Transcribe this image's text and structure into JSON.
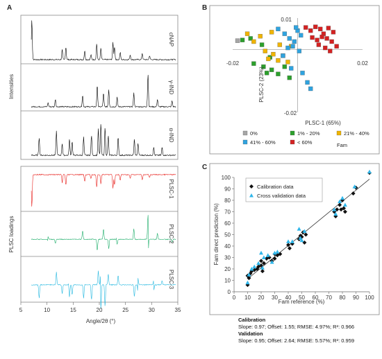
{
  "panels": {
    "a": "A",
    "b": "B",
    "c": "C"
  },
  "panel_a": {
    "xlabel": "Angle/2θ (°)",
    "xticks": [
      5,
      10,
      15,
      20,
      25,
      30,
      35
    ],
    "xlim": [
      5,
      35
    ],
    "ylabel_top": "Intensities",
    "ylabel_bottom": "PLSC loadings",
    "traces": [
      {
        "name": "cNAP",
        "color": "#000000"
      },
      {
        "name": "γ-IND",
        "color": "#000000"
      },
      {
        "name": "α-IND",
        "color": "#000000"
      },
      {
        "name": "PLSC-1",
        "color": "#e8231f"
      },
      {
        "name": "PLSC-2",
        "color": "#1fae6b"
      },
      {
        "name": "PLSC-3",
        "color": "#25b8e0"
      }
    ]
  },
  "chart_data": [
    {
      "type": "scatter",
      "panel": "B",
      "xlabel": "PLSC-1 (65%)",
      "ylabel": "PLSC-2 (23%)",
      "xlim": [
        -0.02,
        0.02
      ],
      "ylim": [
        -0.02,
        0.01
      ],
      "xtick_labels": [
        "-0.02",
        "0.02"
      ],
      "ytick_labels": [
        "0.01",
        "-0.02"
      ],
      "grid": false,
      "legend_position": "bottom",
      "series": [
        {
          "name": "0%",
          "color": "#a6a6a6",
          "x": [
            -0.0185
          ],
          "y": [
            0.0028
          ]
        },
        {
          "name": "1% - 20%",
          "color": "#2ca02c",
          "x": [
            -0.017,
            -0.0145,
            -0.0135,
            -0.0105,
            -0.0095,
            -0.008,
            -0.006,
            -0.004,
            -0.0085,
            -0.0025,
            -0.011
          ],
          "y": [
            0.003,
            0.0035,
            -0.0045,
            -0.0055,
            -0.0075,
            -0.0065,
            -0.0078,
            -0.0055,
            -0.0025,
            -0.009,
            0.0015
          ]
        },
        {
          "name": "21% - 40%",
          "color": "#f0b400",
          "x": [
            -0.0155,
            -0.0135,
            -0.0115,
            -0.01,
            -0.009,
            -0.0075,
            -0.006,
            -0.0045,
            -0.003,
            -0.0055,
            -0.008,
            -0.002
          ],
          "y": [
            0.005,
            0.0025,
            0.0042,
            -0.0005,
            -0.003,
            -0.0015,
            -0.0035,
            -0.002,
            -0.004,
            0.0015,
            0.0055,
            0.001
          ]
        },
        {
          "name": "41% - 60%",
          "color": "#2fa3df",
          "x": [
            -0.006,
            -0.004,
            -0.0025,
            -0.001,
            0.0,
            0.001,
            -0.0015,
            0.0005,
            -0.0045,
            -0.002,
            0.0015,
            0.003,
            0.004,
            -0.0005,
            -0.003
          ],
          "y": [
            0.0065,
            0.005,
            0.0035,
            0.0025,
            0.006,
            0.0045,
            0.001,
            -0.0005,
            -0.002,
            -0.006,
            -0.0075,
            -0.0105,
            -0.0125,
            0.007,
            0.0005
          ]
        },
        {
          "name": "< 60%",
          "color": "#d42222",
          "x": [
            0.0025,
            0.004,
            0.0055,
            0.007,
            0.008,
            0.0095,
            0.011,
            0.0045,
            0.006,
            0.0075,
            0.009,
            0.0105,
            0.0065,
            0.0085,
            0.01,
            0.012
          ],
          "y": [
            0.007,
            0.006,
            0.0072,
            0.0065,
            0.005,
            0.0068,
            0.0055,
            0.0038,
            0.003,
            0.004,
            0.0035,
            0.0025,
            0.0015,
            0.0005,
            -0.0005,
            0.001
          ]
        }
      ],
      "legend_extra": "Fam"
    },
    {
      "type": "scatter",
      "panel": "C",
      "xlabel": "Fam reference (%)",
      "ylabel": "Fam direct prediction (%)",
      "xlim": [
        0,
        100
      ],
      "ylim": [
        0,
        100
      ],
      "xticks": [
        0,
        10,
        20,
        30,
        40,
        50,
        60,
        70,
        80,
        90,
        100
      ],
      "yticks": [
        0,
        10,
        20,
        30,
        40,
        50,
        60,
        70,
        80,
        90,
        100
      ],
      "grid": false,
      "legend_position": "top-left",
      "fit_line": {
        "slope": 0.97,
        "offset": 1.55,
        "x_range": [
          10,
          100
        ]
      },
      "series": [
        {
          "name": "Calibration data",
          "marker": "diamond",
          "color": "#111111",
          "x": [
            10,
            10,
            11,
            12,
            13,
            15,
            17,
            18,
            20,
            20,
            21,
            22,
            24,
            26,
            28,
            30,
            30,
            32,
            34,
            40,
            41,
            43,
            48,
            49,
            50,
            51,
            52,
            53,
            74,
            75,
            76,
            78,
            79,
            80,
            81,
            82,
            88,
            90,
            100
          ],
          "y": [
            6,
            14,
            12,
            16,
            18,
            19,
            20,
            22,
            23,
            27,
            18,
            25,
            29,
            30,
            27,
            29,
            33,
            32,
            33,
            41,
            38,
            42,
            46,
            49,
            48,
            52,
            43,
            50,
            70,
            66,
            72,
            76,
            72,
            80,
            73,
            70,
            86,
            91,
            104
          ]
        },
        {
          "name": "Cross validation data",
          "marker": "triangle",
          "color": "#2fb6ea",
          "x": [
            10,
            11,
            13,
            15,
            18,
            20,
            21,
            22,
            25,
            28,
            30,
            32,
            40,
            43,
            48,
            49,
            50,
            52,
            74,
            75,
            78,
            80,
            82,
            89,
            100
          ],
          "y": [
            8,
            15,
            20,
            22,
            25,
            34,
            21,
            30,
            32,
            26,
            34,
            35,
            44,
            44,
            55,
            47,
            45,
            53,
            72,
            68,
            79,
            82,
            76,
            92,
            105
          ]
        }
      ]
    }
  ],
  "stats": {
    "cal_title": "Calibration",
    "cal_text": "Slope: 0.97; Offset: 1.55; RMSE: 4.97%; R²: 0.966",
    "val_title": "Validation",
    "val_text": "Slope: 0.95; Offset: 2.64; RMSE: 5.57%; R²: 0.959"
  }
}
